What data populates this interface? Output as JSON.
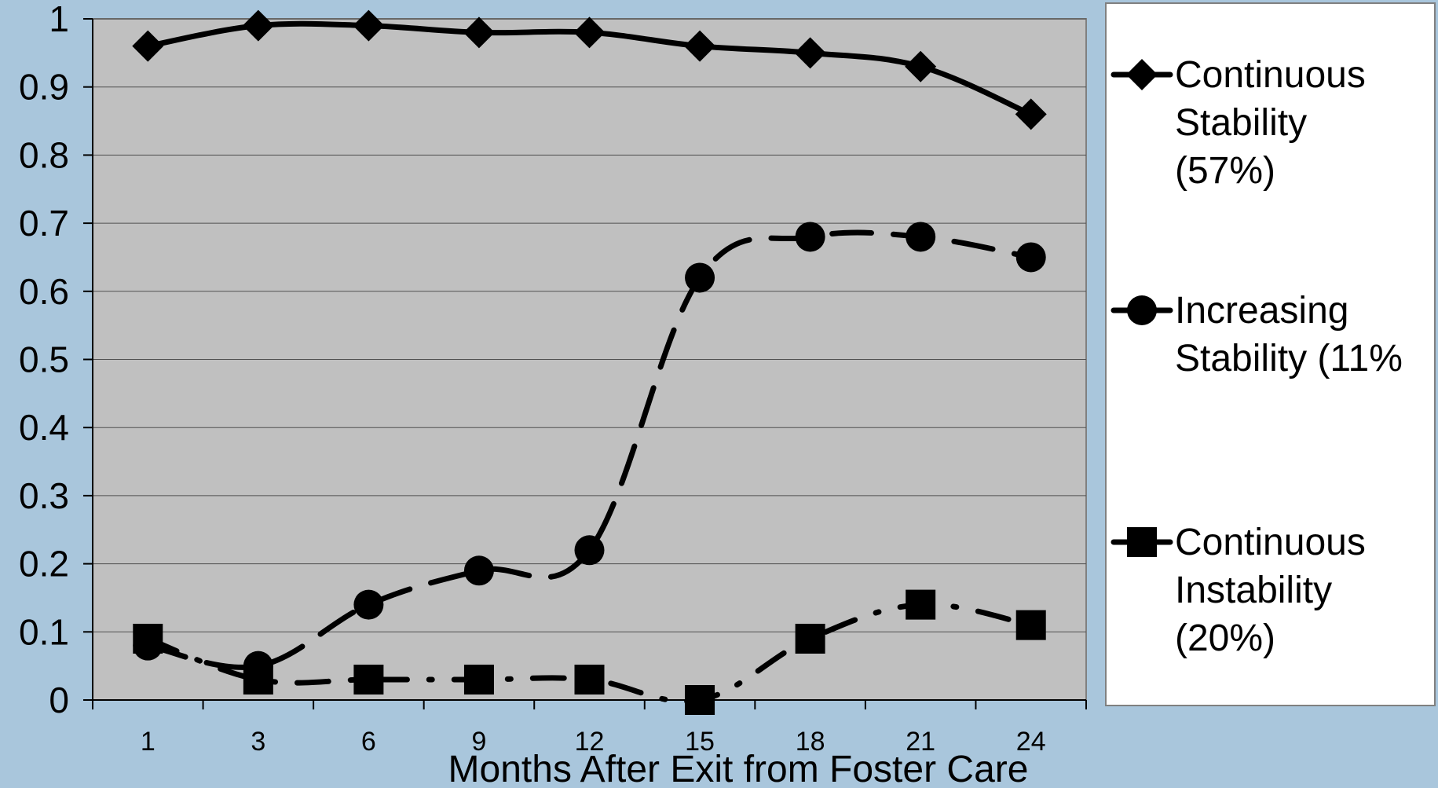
{
  "chart_data": {
    "type": "line",
    "title": "",
    "xlabel": "Months After Exit from Foster Care",
    "ylabel": "",
    "categories": [
      "1",
      "3",
      "6",
      "9",
      "12",
      "15",
      "18",
      "21",
      "24"
    ],
    "ylim": [
      0,
      1
    ],
    "yticks": [
      "0",
      "0.1",
      "0.2",
      "0.3",
      "0.4",
      "0.5",
      "0.6",
      "0.7",
      "0.8",
      "0.9",
      "1"
    ],
    "grid": "horizontal",
    "legend_position": "right",
    "plot_background": "#c0c0c0",
    "page_background": "#a9c6dc",
    "series": [
      {
        "name": "Continuous Stability (57%)",
        "legend_lines": [
          "Continuous",
          "Stability",
          "(57%)"
        ],
        "marker": "diamond",
        "line_style": "solid",
        "color": "#000000",
        "values": [
          0.96,
          0.99,
          0.99,
          0.98,
          0.98,
          0.96,
          0.95,
          0.93,
          0.86
        ]
      },
      {
        "name": "Increasing Stability (11%",
        "legend_lines": [
          "Increasing",
          "Stability (11%"
        ],
        "marker": "circle",
        "line_style": "dashed",
        "color": "#000000",
        "values": [
          0.08,
          0.05,
          0.14,
          0.19,
          0.22,
          0.62,
          0.68,
          0.68,
          0.65
        ]
      },
      {
        "name": "Continuous Instability (20%)",
        "legend_lines": [
          "Continuous",
          "Instability",
          "(20%)"
        ],
        "marker": "square",
        "line_style": "dash-dot",
        "color": "#000000",
        "values": [
          0.09,
          0.03,
          0.03,
          0.03,
          0.03,
          0.0,
          0.09,
          0.14,
          0.11
        ]
      }
    ]
  }
}
